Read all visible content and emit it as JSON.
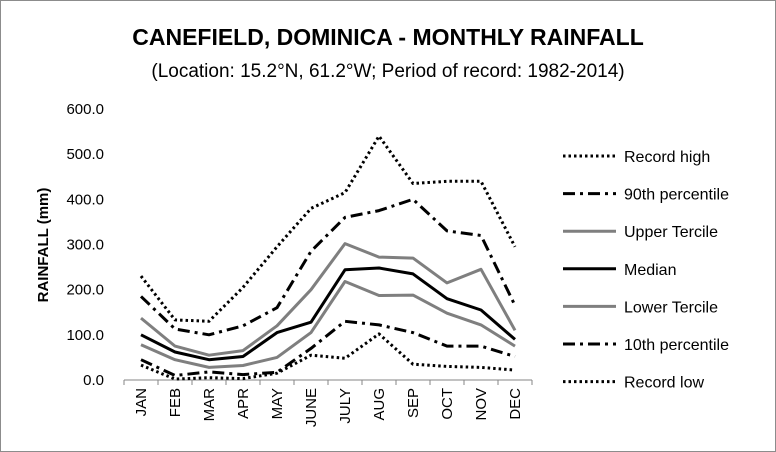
{
  "chart_data": {
    "type": "line",
    "title": "CANEFIELD, DOMINICA - MONTHLY RAINFALL",
    "subtitle": "(Location: 15.2°N, 61.2°W; Period of record: 1982-2014)",
    "xlabel": "",
    "ylabel": "RAINFALL (mm)",
    "ylim": [
      0,
      600
    ],
    "yticks": [
      "0.0",
      "100.0",
      "200.0",
      "300.0",
      "400.0",
      "500.0",
      "600.0"
    ],
    "grid": false,
    "legend_position": "right",
    "categories": [
      "JAN",
      "FEB",
      "MAR",
      "APR",
      "MAY",
      "JUNE",
      "JULY",
      "AUG",
      "SEP",
      "OCT",
      "NOV",
      "DEC"
    ],
    "series": [
      {
        "name": "Record high",
        "color": "#000000",
        "style": "dotted",
        "values": [
          230,
          133,
          130,
          205,
          295,
          380,
          415,
          540,
          435,
          440,
          440,
          295
        ]
      },
      {
        "name": "90th percentile",
        "color": "#000000",
        "style": "dashdot",
        "values": [
          185,
          113,
          100,
          120,
          160,
          285,
          360,
          375,
          400,
          330,
          320,
          165
        ]
      },
      {
        "name": "Upper Tercile",
        "color": "#7f7f7f",
        "style": "solid",
        "values": [
          137,
          75,
          55,
          65,
          120,
          200,
          302,
          272,
          270,
          215,
          245,
          110
        ]
      },
      {
        "name": "Median",
        "color": "#000000",
        "style": "solid",
        "values": [
          100,
          62,
          45,
          52,
          105,
          128,
          244,
          248,
          235,
          180,
          155,
          90
        ]
      },
      {
        "name": "Lower Tercile",
        "color": "#7f7f7f",
        "style": "solid",
        "values": [
          78,
          45,
          28,
          32,
          50,
          105,
          218,
          187,
          188,
          148,
          122,
          75
        ]
      },
      {
        "name": "10th percentile",
        "color": "#000000",
        "style": "dashdot",
        "values": [
          45,
          10,
          18,
          12,
          17,
          70,
          130,
          122,
          105,
          75,
          75,
          52
        ]
      },
      {
        "name": "Record low",
        "color": "#000000",
        "style": "dotted",
        "values": [
          33,
          2,
          5,
          3,
          15,
          55,
          48,
          102,
          35,
          30,
          28,
          22
        ]
      }
    ]
  }
}
